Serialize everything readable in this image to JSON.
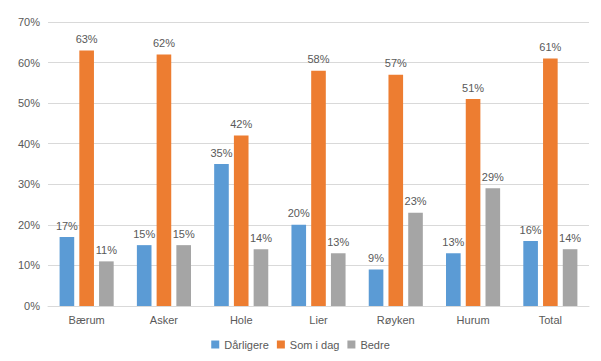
{
  "chart_data": {
    "type": "bar",
    "categories": [
      "Bærum",
      "Asker",
      "Hole",
      "Lier",
      "Røyken",
      "Hurum",
      "Total"
    ],
    "series": [
      {
        "name": "Dårligere",
        "color": "#5b9bd5",
        "values": [
          17,
          15,
          35,
          20,
          9,
          13,
          16
        ],
        "value_labels": [
          "17%",
          "15%",
          "35%",
          "20%",
          "9%",
          "13%",
          "16%"
        ]
      },
      {
        "name": "Som i dag",
        "color": "#ed7d31",
        "values": [
          63,
          62,
          42,
          58,
          57,
          51,
          61
        ],
        "value_labels": [
          "63%",
          "62%",
          "42%",
          "58%",
          "57%",
          "51%",
          "61%"
        ]
      },
      {
        "name": "Bedre",
        "color": "#a5a5a5",
        "values": [
          11,
          15,
          14,
          13,
          23,
          29,
          14
        ],
        "value_labels": [
          "11%",
          "15%",
          "14%",
          "13%",
          "23%",
          "29%",
          "14%"
        ]
      }
    ],
    "ylim": [
      0,
      70
    ],
    "yticks": [
      {
        "value": 0,
        "label": "0%"
      },
      {
        "value": 10,
        "label": "10%"
      },
      {
        "value": 20,
        "label": "20%"
      },
      {
        "value": 30,
        "label": "30%"
      },
      {
        "value": 40,
        "label": "40%"
      },
      {
        "value": 50,
        "label": "50%"
      },
      {
        "value": 60,
        "label": "60%"
      },
      {
        "value": 70,
        "label": "70%"
      }
    ],
    "grid": true,
    "legend": "bottom",
    "data_labels": true
  }
}
